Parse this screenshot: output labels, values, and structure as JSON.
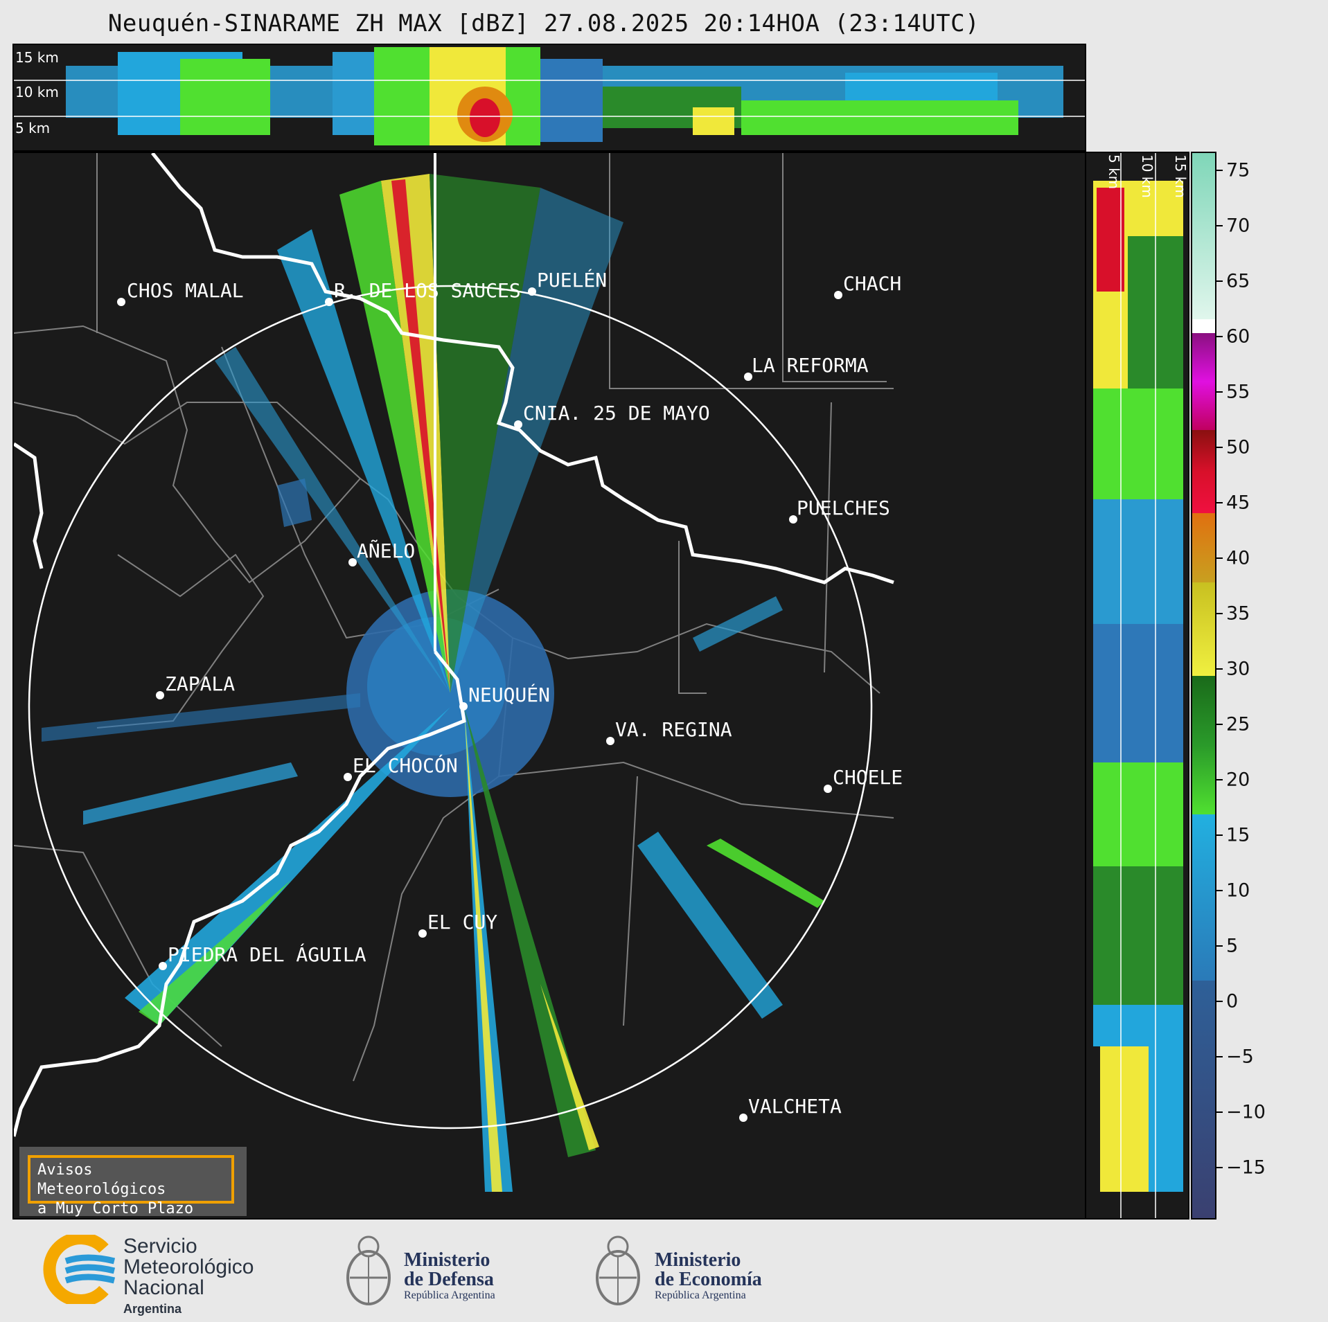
{
  "title": "Neuquén-SINARAME ZH MAX [dBZ] 27.08.2025 20:14HOA (23:14UTC)",
  "top_panel": {
    "labels": [
      "15 km",
      "10 km",
      "5 km"
    ]
  },
  "side_panel": {
    "labels": [
      "5 km",
      "10 km",
      "15 km"
    ]
  },
  "cities": [
    {
      "name": "CHOS MALAL"
    },
    {
      "name": "R. DE LOS SAUCES"
    },
    {
      "name": "PUELÉN"
    },
    {
      "name": "CHACH"
    },
    {
      "name": "LA REFORMA"
    },
    {
      "name": "CNIA. 25 DE MAYO"
    },
    {
      "name": "PUELCHES"
    },
    {
      "name": "AÑELO"
    },
    {
      "name": "ZAPALA"
    },
    {
      "name": "NEUQUÉN"
    },
    {
      "name": "VA. REGINA"
    },
    {
      "name": "EL CHOCÓN"
    },
    {
      "name": "CHOELE"
    },
    {
      "name": "EL CUY"
    },
    {
      "name": "PIEDRA DEL ÁGUILA"
    },
    {
      "name": "VALCHETA"
    }
  ],
  "colorbar": {
    "unit": "dBZ",
    "ticks": [
      "75",
      "70",
      "65",
      "60",
      "55",
      "50",
      "45",
      "40",
      "35",
      "30",
      "25",
      "20",
      "15",
      "10",
      "5",
      "0",
      "−5",
      "−10",
      "−15"
    ],
    "colors": {
      "cyan_high": "#7fd6b8",
      "white": "#ffffff",
      "magenta": "#a0108a",
      "red": "#d8102a",
      "orange": "#e08a10",
      "yellow": "#f0e83a",
      "green": "#2a8a2a",
      "lightgreen": "#50e030",
      "lightblue": "#22a6dc",
      "blue": "#2e78b8",
      "navy": "#3a4070"
    }
  },
  "aviso": {
    "line1": "Avisos Meteorológicos",
    "line2": "a Muy Corto Plazo"
  },
  "footer": {
    "smn": {
      "line1": "Servicio",
      "line2": "Meteorológico",
      "line3": "Nacional",
      "line4": "Argentina"
    },
    "defensa": {
      "line1": "Ministerio",
      "line2": "de Defensa",
      "line3": "República Argentina"
    },
    "economia": {
      "line1": "Ministerio",
      "line2": "de Economía",
      "line3": "República Argentina"
    }
  }
}
